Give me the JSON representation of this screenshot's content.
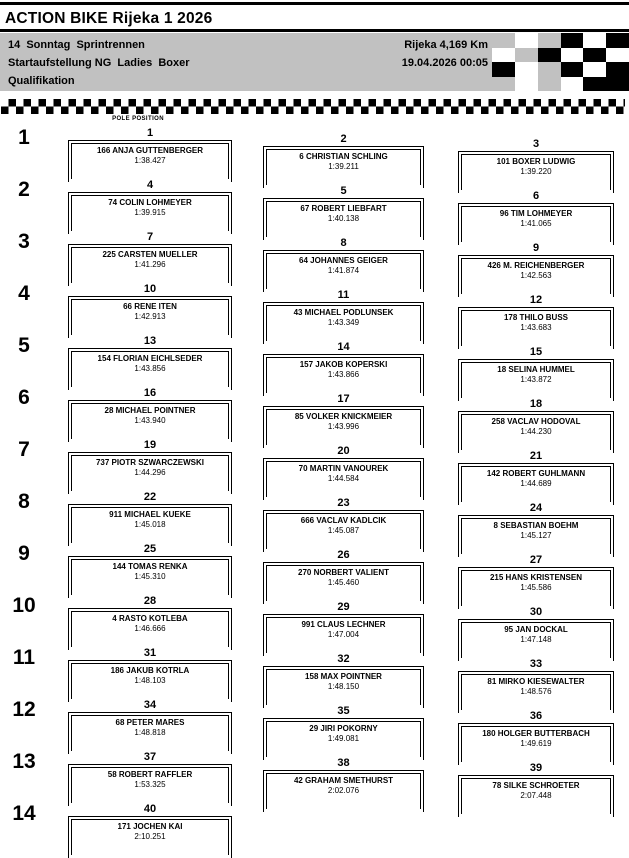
{
  "header": {
    "title": "ACTION BIKE Rijeka 1 2026",
    "event_line": "14  Sonntag  Sprintrennen",
    "session_line": "Startaufstellung NG  Ladies  Boxer",
    "stage_line": "Qualifikation",
    "track_distance": "Rijeka 4,169 Km",
    "datetime": "19.04.2026 00:05"
  },
  "grid": {
    "pole_label": "POLE POSITION",
    "rows": [
      {
        "row_number": "1",
        "entries": [
          {
            "position": "1",
            "driver": "166 ANJA GUTTENBERGER",
            "time": "1:38.427"
          },
          {
            "position": "2",
            "driver": "6 CHRISTIAN SCHLING",
            "time": "1:39.211"
          },
          {
            "position": "3",
            "driver": "101 BOXER LUDWIG",
            "time": "1:39.220"
          }
        ]
      },
      {
        "row_number": "2",
        "entries": [
          {
            "position": "4",
            "driver": "74 COLIN LOHMEYER",
            "time": "1:39.915"
          },
          {
            "position": "5",
            "driver": "67 ROBERT LIEBFART",
            "time": "1:40.138"
          },
          {
            "position": "6",
            "driver": "96 TIM LOHMEYER",
            "time": "1:41.065"
          }
        ]
      },
      {
        "row_number": "3",
        "entries": [
          {
            "position": "7",
            "driver": "225 CARSTEN MUELLER",
            "time": "1:41.296"
          },
          {
            "position": "8",
            "driver": "64 JOHANNES GEIGER",
            "time": "1:41.874"
          },
          {
            "position": "9",
            "driver": "426 M. REICHENBERGER",
            "time": "1:42.563"
          }
        ]
      },
      {
        "row_number": "4",
        "entries": [
          {
            "position": "10",
            "driver": "66 RENE ITEN",
            "time": "1:42.913"
          },
          {
            "position": "11",
            "driver": "43 MICHAEL PODLUNSEK",
            "time": "1:43.349"
          },
          {
            "position": "12",
            "driver": "178 THILO BUSS",
            "time": "1:43.683"
          }
        ]
      },
      {
        "row_number": "5",
        "entries": [
          {
            "position": "13",
            "driver": "154 FLORIAN EICHLSEDER",
            "time": "1:43.856"
          },
          {
            "position": "14",
            "driver": "157 JAKOB KOPERSKI",
            "time": "1:43.866"
          },
          {
            "position": "15",
            "driver": "18 SELINA HUMMEL",
            "time": "1:43.872"
          }
        ]
      },
      {
        "row_number": "6",
        "entries": [
          {
            "position": "16",
            "driver": "28 MICHAEL POINTNER",
            "time": "1:43.940"
          },
          {
            "position": "17",
            "driver": "85 VOLKER KNICKMEIER",
            "time": "1:43.996"
          },
          {
            "position": "18",
            "driver": "258 VACLAV HODOVAL",
            "time": "1:44.230"
          }
        ]
      },
      {
        "row_number": "7",
        "entries": [
          {
            "position": "19",
            "driver": "737 PIOTR SZWARCZEWSKI",
            "time": "1:44.296"
          },
          {
            "position": "20",
            "driver": "70 MARTIN VANOUREK",
            "time": "1:44.584"
          },
          {
            "position": "21",
            "driver": "142 ROBERT GUHLMANN",
            "time": "1:44.689"
          }
        ]
      },
      {
        "row_number": "8",
        "entries": [
          {
            "position": "22",
            "driver": "911 MICHAEL KUEKE",
            "time": "1:45.018"
          },
          {
            "position": "23",
            "driver": "666 VACLAV KADLCIK",
            "time": "1:45.087"
          },
          {
            "position": "24",
            "driver": "8 SEBASTIAN BOEHM",
            "time": "1:45.127"
          }
        ]
      },
      {
        "row_number": "9",
        "entries": [
          {
            "position": "25",
            "driver": "144 TOMAS RENKA",
            "time": "1:45.310"
          },
          {
            "position": "26",
            "driver": "270 NORBERT VALIENT",
            "time": "1:45.460"
          },
          {
            "position": "27",
            "driver": "215 HANS KRISTENSEN",
            "time": "1:45.586"
          }
        ]
      },
      {
        "row_number": "10",
        "entries": [
          {
            "position": "28",
            "driver": "4 RASTO KOTLEBA",
            "time": "1:46.666"
          },
          {
            "position": "29",
            "driver": "991 CLAUS LECHNER",
            "time": "1:47.004"
          },
          {
            "position": "30",
            "driver": "95 JAN DOCKAL",
            "time": "1:47.148"
          }
        ]
      },
      {
        "row_number": "11",
        "entries": [
          {
            "position": "31",
            "driver": "186 JAKUB KOTRLA",
            "time": "1:48.103"
          },
          {
            "position": "32",
            "driver": "158 MAX POINTNER",
            "time": "1:48.150"
          },
          {
            "position": "33",
            "driver": "81 MIRKO KIESEWALTER",
            "time": "1:48.576"
          }
        ]
      },
      {
        "row_number": "12",
        "entries": [
          {
            "position": "34",
            "driver": "68 PETER MARES",
            "time": "1:48.818"
          },
          {
            "position": "35",
            "driver": "29 JIRI POKORNY",
            "time": "1:49.081"
          },
          {
            "position": "36",
            "driver": "180 HOLGER BUTTERBACH",
            "time": "1:49.619"
          }
        ]
      },
      {
        "row_number": "13",
        "entries": [
          {
            "position": "37",
            "driver": "58 ROBERT RAFFLER",
            "time": "1:53.325"
          },
          {
            "position": "38",
            "driver": "42 GRAHAM SMETHURST",
            "time": "2:02.076"
          },
          {
            "position": "39",
            "driver": "78 SILKE SCHROETER",
            "time": "2:07.448"
          }
        ]
      },
      {
        "row_number": "14",
        "entries": [
          {
            "position": "40",
            "driver": "171 JOCHEN KAI",
            "time": "2:10.251"
          }
        ]
      }
    ]
  },
  "decor": {
    "checker_colors": {
      "K": "#000000",
      "W": "#ffffff",
      "G": "#c1c1c1"
    },
    "header_pattern": [
      "GWGKWK",
      "WGKWKW",
      "KWGKWK",
      "GWGWKK"
    ]
  }
}
